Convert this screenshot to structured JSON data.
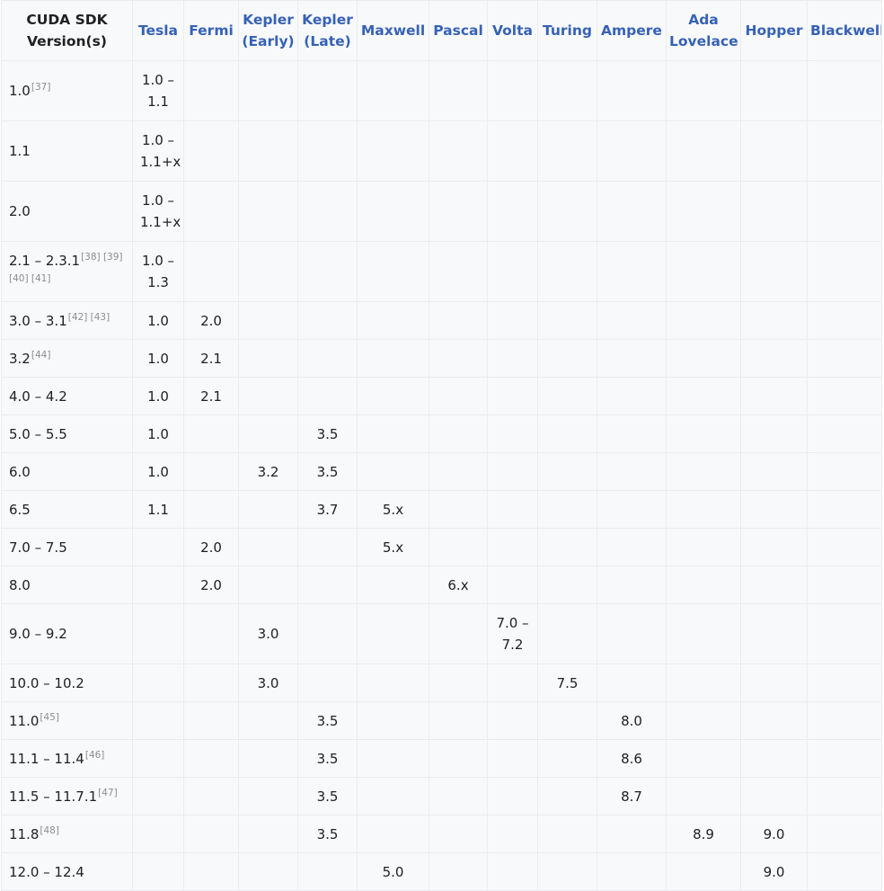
{
  "headers": [
    "CUDA SDK Version(s)",
    "Tesla",
    "Fermi",
    "Kepler (Early)",
    "Kepler (Late)",
    "Maxwell",
    "Pascal",
    "Volta",
    "Turing",
    "Ampere",
    "Ada Lovelace",
    "Hopper",
    "Blackwell"
  ],
  "rows": [
    {
      "version": "1.0",
      "refs": "[37]",
      "cells": [
        "1.0 – 1.1",
        "",
        "",
        "",
        "",
        "",
        "",
        "",
        "",
        "",
        "",
        ""
      ]
    },
    {
      "version": "1.1",
      "refs": "",
      "cells": [
        "1.0 – 1.1+x",
        "",
        "",
        "",
        "",
        "",
        "",
        "",
        "",
        "",
        "",
        ""
      ]
    },
    {
      "version": "2.0",
      "refs": "",
      "cells": [
        "1.0 – 1.1+x",
        "",
        "",
        "",
        "",
        "",
        "",
        "",
        "",
        "",
        "",
        ""
      ]
    },
    {
      "version": "2.1 – 2.3.1",
      "refs": "[38] [39] [40] [41]",
      "cells": [
        "1.0 – 1.3",
        "",
        "",
        "",
        "",
        "",
        "",
        "",
        "",
        "",
        "",
        ""
      ]
    },
    {
      "version": "3.0 – 3.1",
      "refs": "[42] [43]",
      "cells": [
        "1.0",
        "2.0",
        "",
        "",
        "",
        "",
        "",
        "",
        "",
        "",
        "",
        ""
      ]
    },
    {
      "version": "3.2",
      "refs": "[44]",
      "cells": [
        "1.0",
        "2.1",
        "",
        "",
        "",
        "",
        "",
        "",
        "",
        "",
        "",
        ""
      ]
    },
    {
      "version": "4.0 – 4.2",
      "refs": "",
      "cells": [
        "1.0",
        "2.1",
        "",
        "",
        "",
        "",
        "",
        "",
        "",
        "",
        "",
        ""
      ]
    },
    {
      "version": "5.0 – 5.5",
      "refs": "",
      "cells": [
        "1.0",
        "",
        "",
        "3.5",
        "",
        "",
        "",
        "",
        "",
        "",
        "",
        ""
      ]
    },
    {
      "version": "6.0",
      "refs": "",
      "cells": [
        "1.0",
        "",
        "3.2",
        "3.5",
        "",
        "",
        "",
        "",
        "",
        "",
        "",
        ""
      ]
    },
    {
      "version": "6.5",
      "refs": "",
      "cells": [
        "1.1",
        "",
        "",
        "3.7",
        "5.x",
        "",
        "",
        "",
        "",
        "",
        "",
        ""
      ]
    },
    {
      "version": "7.0 – 7.5",
      "refs": "",
      "cells": [
        "",
        "2.0",
        "",
        "",
        "5.x",
        "",
        "",
        "",
        "",
        "",
        "",
        ""
      ]
    },
    {
      "version": "8.0",
      "refs": "",
      "cells": [
        "",
        "2.0",
        "",
        "",
        "",
        "6.x",
        "",
        "",
        "",
        "",
        "",
        ""
      ]
    },
    {
      "version": "9.0 – 9.2",
      "refs": "",
      "cells": [
        "",
        "",
        "3.0",
        "",
        "",
        "",
        "7.0 – 7.2",
        "",
        "",
        "",
        "",
        ""
      ]
    },
    {
      "version": "10.0 – 10.2",
      "refs": "",
      "cells": [
        "",
        "",
        "3.0",
        "",
        "",
        "",
        "",
        "7.5",
        "",
        "",
        "",
        ""
      ]
    },
    {
      "version": "11.0",
      "refs": "[45]",
      "cells": [
        "",
        "",
        "",
        "3.5",
        "",
        "",
        "",
        "",
        "8.0",
        "",
        "",
        ""
      ]
    },
    {
      "version": "11.1 – 11.4",
      "refs": "[46]",
      "cells": [
        "",
        "",
        "",
        "3.5",
        "",
        "",
        "",
        "",
        "8.6",
        "",
        "",
        ""
      ]
    },
    {
      "version": "11.5 – 11.7.1",
      "refs": "[47]",
      "cells": [
        "",
        "",
        "",
        "3.5",
        "",
        "",
        "",
        "",
        "8.7",
        "",
        "",
        ""
      ]
    },
    {
      "version": "11.8",
      "refs": "[48]",
      "cells": [
        "",
        "",
        "",
        "3.5",
        "",
        "",
        "",
        "",
        "",
        "8.9",
        "9.0",
        ""
      ]
    },
    {
      "version": "12.0 – 12.4",
      "refs": "",
      "cells": [
        "",
        "",
        "",
        "",
        "5.0",
        "",
        "",
        "",
        "",
        "",
        "9.0",
        ""
      ]
    }
  ],
  "colors": {
    "link": "#3662b6",
    "text": "#202122",
    "border": "#eaecf0",
    "cell_bg": "#f8f9fa",
    "ref": "#8a8d91"
  }
}
